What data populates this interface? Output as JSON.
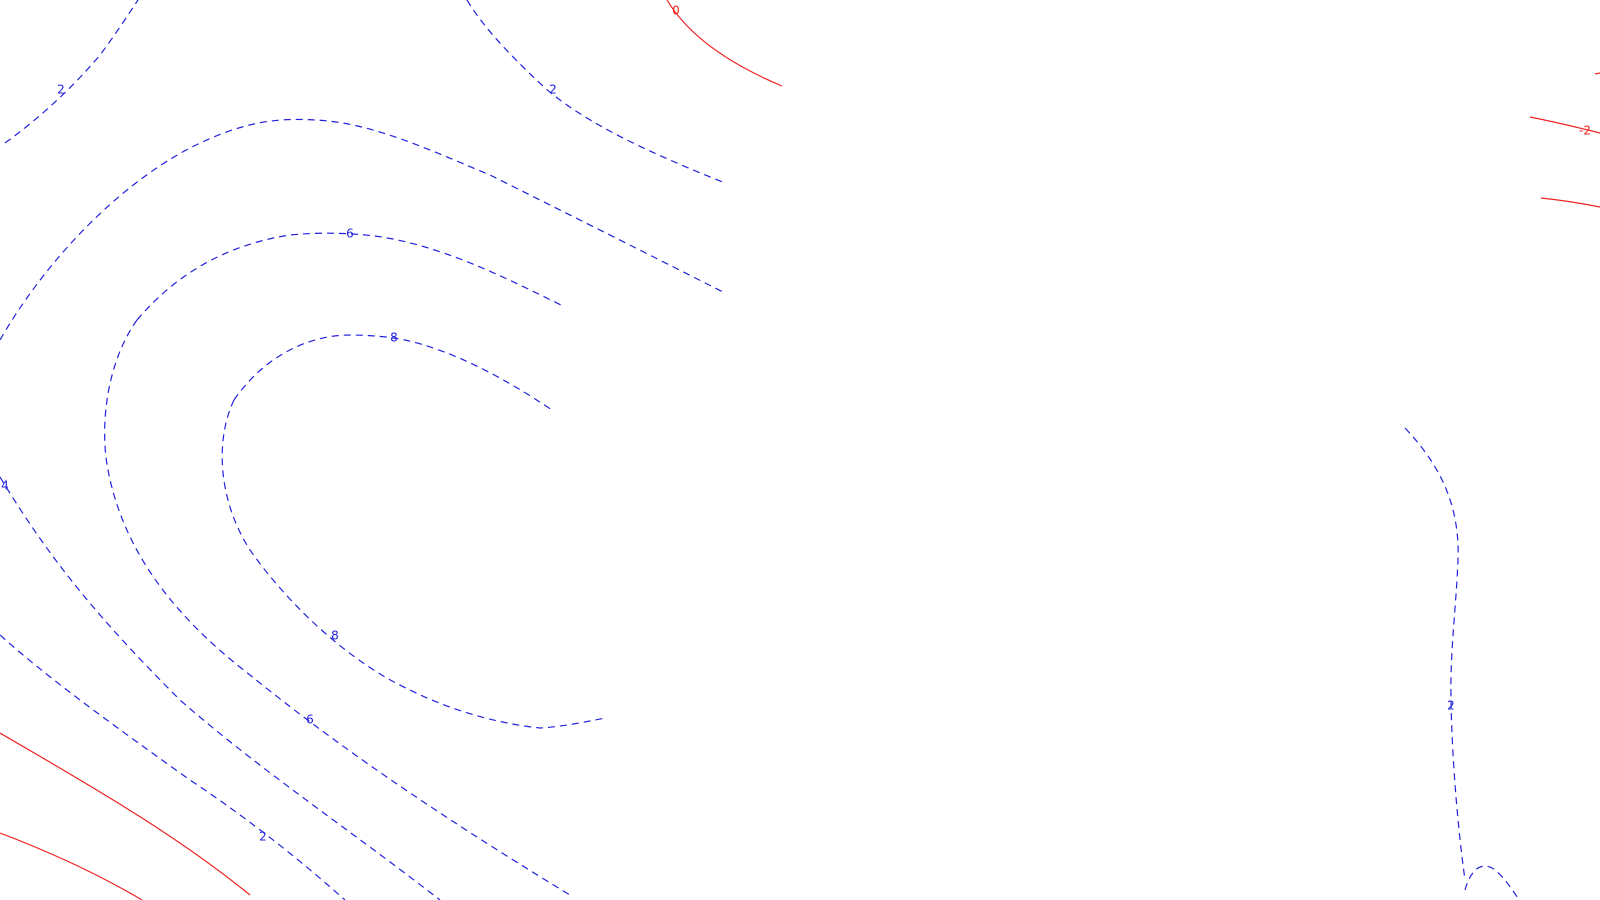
{
  "colors": {
    "background": "#ffffff",
    "positive_contour": "#2222dd",
    "negative_contour": "#ee2222"
  },
  "contour_labels": [
    {
      "text": "2",
      "sign": "pos"
    },
    {
      "text": "2",
      "sign": "pos"
    },
    {
      "text": "0",
      "sign": "neg"
    },
    {
      "text": "-2",
      "sign": "neg"
    },
    {
      "text": "6",
      "sign": "pos"
    },
    {
      "text": "8",
      "sign": "pos"
    },
    {
      "text": "4",
      "sign": "pos"
    },
    {
      "text": "8",
      "sign": "pos"
    },
    {
      "text": "6",
      "sign": "pos"
    },
    {
      "text": "2",
      "sign": "pos"
    },
    {
      "text": "2",
      "sign": "pos"
    }
  ]
}
